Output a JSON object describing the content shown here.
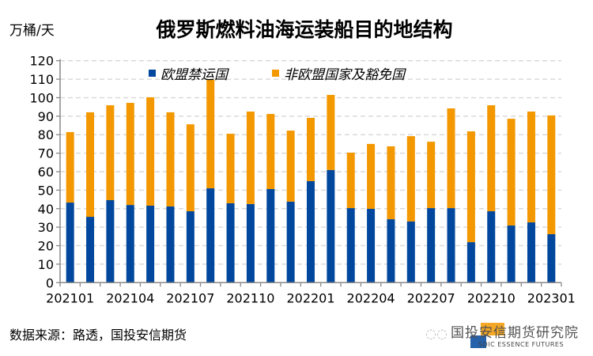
{
  "watermark": {
    "account": "国投安信期货研究院",
    "logo_text": "SDIC ESSENCE FUTURES",
    "icon": "wechat-icon"
  },
  "source": "数据来源：路透，国投安信期货",
  "chart_data": {
    "type": "bar",
    "stacked": true,
    "title": "俄罗斯燃料油海运装船目的地结构",
    "ylabel": "万桶/天",
    "xlabel": "",
    "ylim": [
      0,
      120
    ],
    "yticks": [
      0,
      10,
      20,
      30,
      40,
      50,
      60,
      70,
      80,
      90,
      100,
      110,
      120
    ],
    "grid": true,
    "legend_position": "top",
    "categories": [
      "202101",
      "202102",
      "202103",
      "202104",
      "202105",
      "202106",
      "202107",
      "202108",
      "202109",
      "202110",
      "202111",
      "202112",
      "202201",
      "202202",
      "202203",
      "202204",
      "202205",
      "202206",
      "202207",
      "202208",
      "202209",
      "202210",
      "202211",
      "202212",
      "202301"
    ],
    "xtick_labels": [
      "202101",
      "202104",
      "202107",
      "202110",
      "202201",
      "202204",
      "202207",
      "202210",
      "202301"
    ],
    "series": [
      {
        "name": "欧盟禁运国",
        "color": "#00479d",
        "values": [
          43.3,
          35.6,
          44.6,
          42.0,
          41.6,
          41.2,
          38.6,
          51.0,
          42.9,
          42.5,
          50.6,
          43.8,
          54.9,
          60.9,
          40.3,
          39.9,
          34.3,
          33.1,
          40.3,
          40.3,
          21.9,
          38.6,
          30.9,
          32.6,
          26.2
        ]
      },
      {
        "name": "非欧盟国家及豁免国",
        "color": "#f39800",
        "values": [
          38.1,
          56.5,
          51.3,
          55.2,
          58.6,
          50.9,
          47.0,
          58.6,
          37.6,
          50.0,
          40.6,
          38.4,
          34.2,
          40.6,
          30.0,
          35.1,
          39.4,
          46.1,
          35.9,
          53.9,
          59.9,
          57.3,
          57.7,
          59.9,
          64.2
        ]
      }
    ]
  }
}
